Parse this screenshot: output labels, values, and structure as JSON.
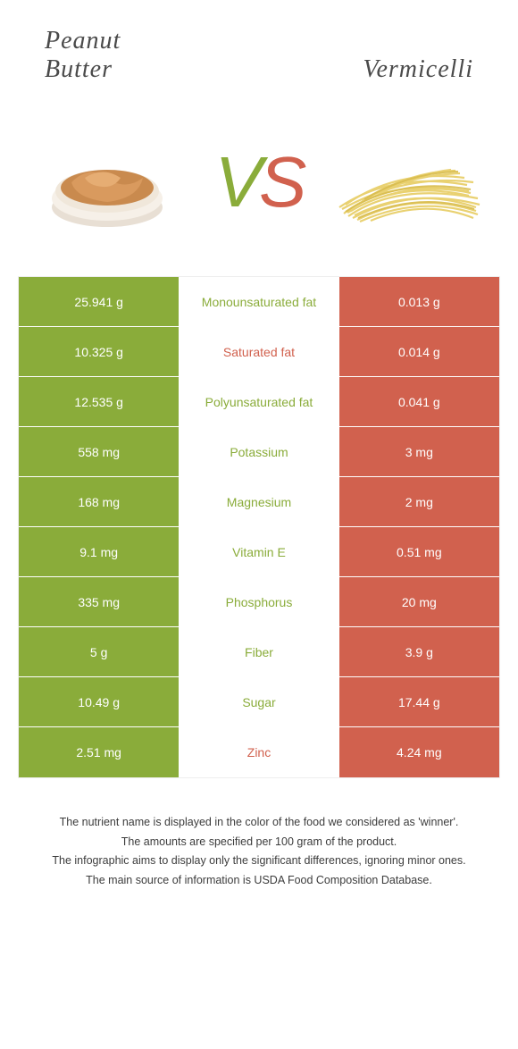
{
  "colors": {
    "left": "#8aac3a",
    "right": "#d1614e",
    "bg": "#ffffff",
    "text": "#3c3c3c"
  },
  "foods": {
    "left": {
      "name": "Peanut\nButter"
    },
    "right": {
      "name": "Vermicelli"
    }
  },
  "vs": {
    "v": "V",
    "s": "S"
  },
  "rows": [
    {
      "left": "25.941 g",
      "label": "Monounsaturated fat",
      "right": "0.013 g",
      "winner": "left"
    },
    {
      "left": "10.325 g",
      "label": "Saturated fat",
      "right": "0.014 g",
      "winner": "right"
    },
    {
      "left": "12.535 g",
      "label": "Polyunsaturated fat",
      "right": "0.041 g",
      "winner": "left"
    },
    {
      "left": "558 mg",
      "label": "Potassium",
      "right": "3 mg",
      "winner": "left"
    },
    {
      "left": "168 mg",
      "label": "Magnesium",
      "right": "2 mg",
      "winner": "left"
    },
    {
      "left": "9.1 mg",
      "label": "Vitamin E",
      "right": "0.51 mg",
      "winner": "left"
    },
    {
      "left": "335 mg",
      "label": "Phosphorus",
      "right": "20 mg",
      "winner": "left"
    },
    {
      "left": "5 g",
      "label": "Fiber",
      "right": "3.9 g",
      "winner": "left"
    },
    {
      "left": "10.49 g",
      "label": "Sugar",
      "right": "17.44 g",
      "winner": "left"
    },
    {
      "left": "2.51 mg",
      "label": "Zinc",
      "right": "4.24 mg",
      "winner": "right"
    }
  ],
  "footer": {
    "l1": "The nutrient name is displayed in the color of the food we considered as 'winner'.",
    "l2": "The amounts are specified per 100 gram of the product.",
    "l3": "The infographic aims to display only the significant differences, ignoring minor ones.",
    "l4": "The main source of information is USDA Food Composition Database."
  }
}
